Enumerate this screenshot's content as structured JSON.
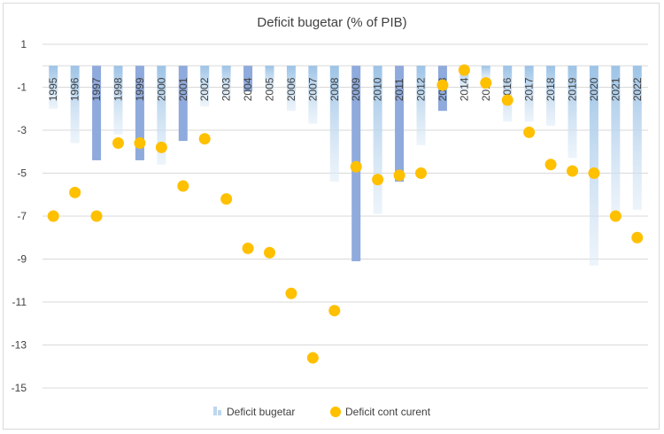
{
  "chart_data": {
    "type": "bar",
    "title": "Deficit bugetar (% of PIB)",
    "xlabel": "",
    "ylabel": "",
    "ylim": [
      -15,
      1
    ],
    "yticks": [
      1,
      -1,
      -3,
      -5,
      -7,
      -9,
      -11,
      -13,
      -15
    ],
    "grid": true,
    "legend_position": "bottom",
    "categories": [
      "1995",
      "1996",
      "1997",
      "1998",
      "1999",
      "2000",
      "2001",
      "2002",
      "2003",
      "2004",
      "2005",
      "2006",
      "2007",
      "2008",
      "2009",
      "2010",
      "2011",
      "2012",
      "2013",
      "2014",
      "2015",
      "2016",
      "2017",
      "2018",
      "2019",
      "2020",
      "2021",
      "2022"
    ],
    "series": [
      {
        "name": "Deficit bugetar",
        "type": "bar",
        "color": "#bdd7ee",
        "highlight_color": "#8faadc",
        "values": [
          -2.0,
          -3.6,
          -4.4,
          -3.2,
          -4.4,
          -4.6,
          -3.5,
          -1.9,
          -1.5,
          -1.2,
          -1.2,
          -2.1,
          -2.7,
          -5.4,
          -9.1,
          -6.9,
          -5.4,
          -3.7,
          -2.1,
          -1.2,
          -0.7,
          -2.6,
          -2.6,
          -2.8,
          -4.3,
          -9.3,
          -7.1,
          -6.7
        ],
        "highlighted": [
          false,
          false,
          true,
          false,
          true,
          false,
          true,
          false,
          false,
          true,
          false,
          false,
          false,
          false,
          true,
          false,
          true,
          false,
          true,
          false,
          false,
          false,
          false,
          false,
          false,
          false,
          false,
          false
        ]
      },
      {
        "name": "Deficit cont curent",
        "type": "scatter",
        "color": "#ffc000",
        "values": [
          -7.0,
          -5.9,
          -7.0,
          -3.6,
          -3.6,
          -3.8,
          -5.6,
          -3.4,
          -6.2,
          -8.5,
          -8.7,
          -10.6,
          -13.6,
          -11.4,
          -4.7,
          -5.3,
          -5.1,
          -5.0,
          -0.9,
          -0.2,
          -0.8,
          -1.6,
          -3.1,
          -4.6,
          -4.9,
          -5.0,
          -7.0,
          -8.0
        ]
      }
    ]
  }
}
